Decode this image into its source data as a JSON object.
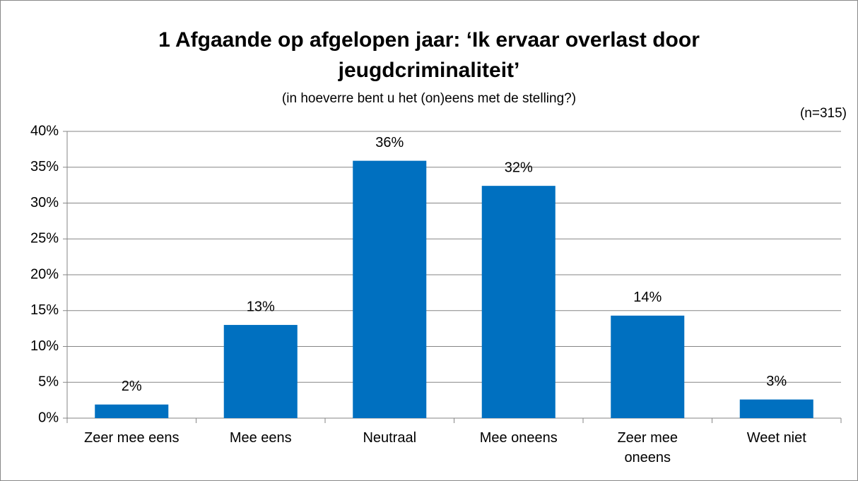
{
  "chart_data": {
    "type": "bar",
    "title": [
      "1 Afgaande op afgelopen jaar:  ‘Ik ervaar overlast door",
      "jeugdcriminaliteit’"
    ],
    "subtitle": "(in hoeverre bent u het (on)eens met de stelling?)",
    "annotation": "(n=315)",
    "categories": [
      "Zeer mee eens",
      "Mee eens",
      "Neutraal",
      "Mee oneens",
      "Zeer mee oneens",
      "Weet niet"
    ],
    "values": [
      1.9,
      13,
      35.9,
      32.4,
      14.3,
      2.6
    ],
    "value_labels": [
      "2%",
      "13%",
      "36%",
      "32%",
      "14%",
      "3%"
    ],
    "color": "#0070c0",
    "ylim": [
      0,
      40
    ],
    "yticks": [
      {
        "value": 0,
        "label": "0%"
      },
      {
        "value": 5,
        "label": "5%"
      },
      {
        "value": 10,
        "label": "10%"
      },
      {
        "value": 15,
        "label": "15%"
      },
      {
        "value": 20,
        "label": "20%"
      },
      {
        "value": 25,
        "label": "25%"
      },
      {
        "value": 30,
        "label": "30%"
      },
      {
        "value": 35,
        "label": "35%"
      },
      {
        "value": 40,
        "label": "40%"
      }
    ],
    "grid": true
  }
}
